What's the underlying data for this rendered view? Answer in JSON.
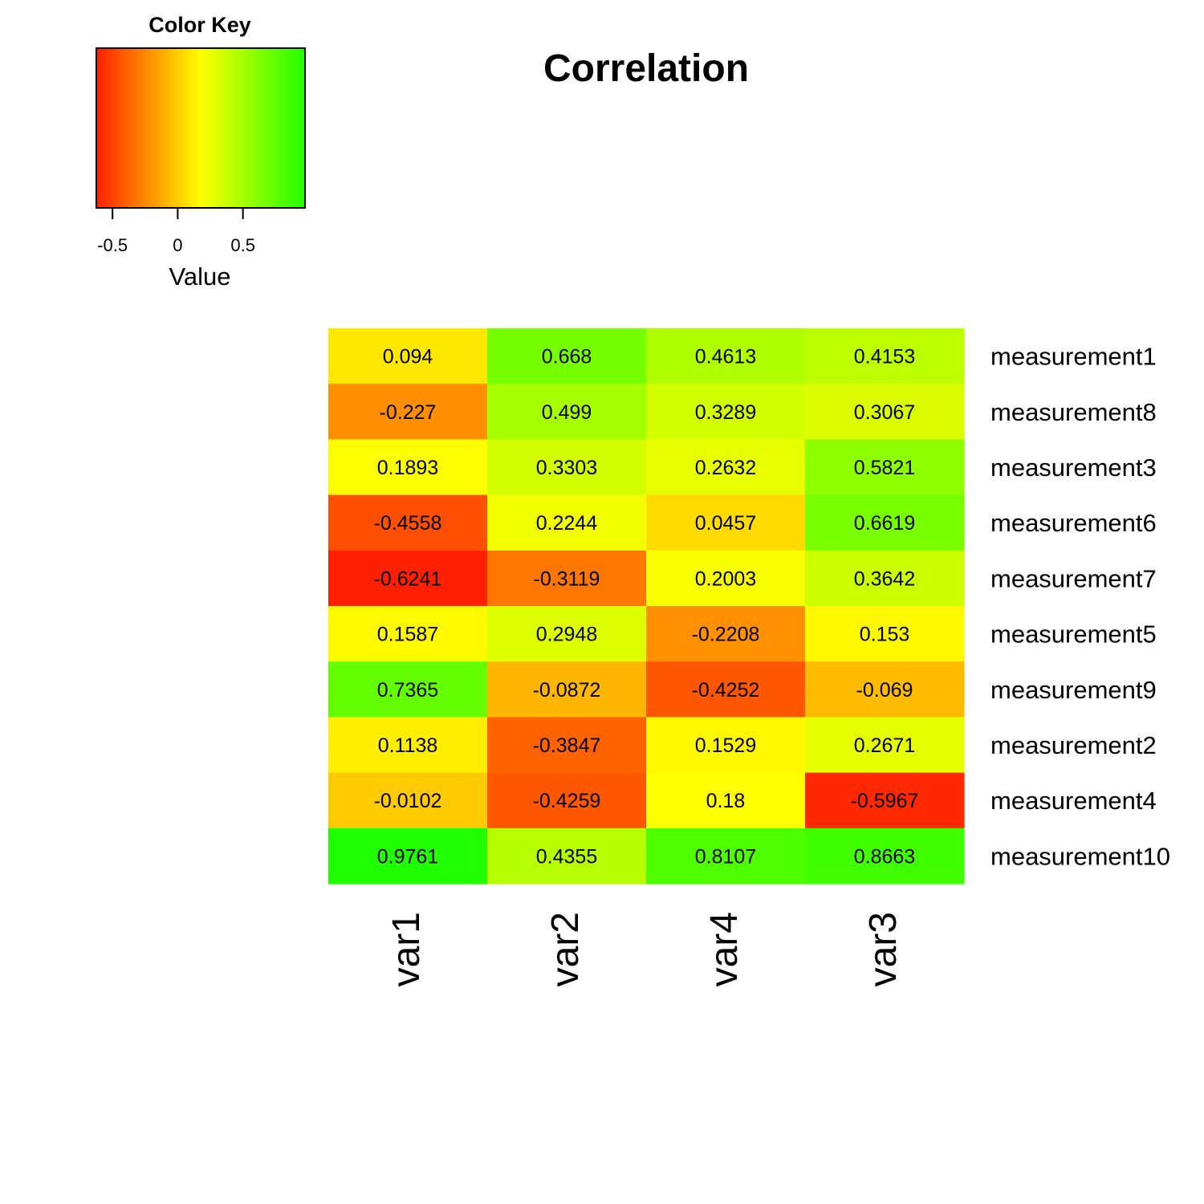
{
  "chart_data": {
    "type": "heatmap",
    "title": "Correlation",
    "rows": [
      "measurement1",
      "measurement8",
      "measurement3",
      "measurement6",
      "measurement7",
      "measurement5",
      "measurement9",
      "measurement2",
      "measurement4",
      "measurement10"
    ],
    "columns": [
      "var1",
      "var2",
      "var4",
      "var3"
    ],
    "values": [
      [
        0.094,
        0.668,
        0.4613,
        0.4153
      ],
      [
        -0.227,
        0.499,
        0.3289,
        0.3067
      ],
      [
        0.1893,
        0.3303,
        0.2632,
        0.5821
      ],
      [
        -0.4558,
        0.2244,
        0.0457,
        0.6619
      ],
      [
        -0.6241,
        -0.3119,
        0.2003,
        0.3642
      ],
      [
        0.1587,
        0.2948,
        -0.2208,
        0.153
      ],
      [
        0.7365,
        -0.0872,
        -0.4252,
        -0.069
      ],
      [
        0.1138,
        -0.3847,
        0.1529,
        0.2671
      ],
      [
        -0.0102,
        -0.4259,
        0.18,
        -0.5967
      ],
      [
        0.9761,
        0.4355,
        0.8107,
        0.8663
      ]
    ],
    "labels": [
      [
        "0.094",
        "0.668",
        "0.4613",
        "0.4153"
      ],
      [
        "-0.227",
        "0.499",
        "0.3289",
        "0.3067"
      ],
      [
        "0.1893",
        "0.3303",
        "0.2632",
        "0.5821"
      ],
      [
        "-0.4558",
        "0.2244",
        "0.0457",
        "0.6619"
      ],
      [
        "-0.6241",
        "-0.3119",
        "0.2003",
        "0.3642"
      ],
      [
        "0.1587",
        "0.2948",
        "-0.2208",
        "0.153"
      ],
      [
        "0.7365",
        "-0.0872",
        "-0.4252",
        "-0.069"
      ],
      [
        "0.1138",
        "-0.3847",
        "0.1529",
        "0.2671"
      ],
      [
        "-0.0102",
        "-0.4259",
        "0.18",
        "-0.5967"
      ],
      [
        "0.9761",
        "0.4355",
        "0.8107",
        "0.8663"
      ]
    ],
    "color_key": {
      "title": "Color Key",
      "xlabel": "Value",
      "range": [
        -0.6241,
        0.9761
      ],
      "ticks": [
        -0.5,
        0,
        0.5
      ],
      "tick_labels": [
        "-0.5",
        "0",
        "0.5"
      ],
      "colors": [
        "#ff2000",
        "#ffff00",
        "#20ff00"
      ]
    }
  }
}
